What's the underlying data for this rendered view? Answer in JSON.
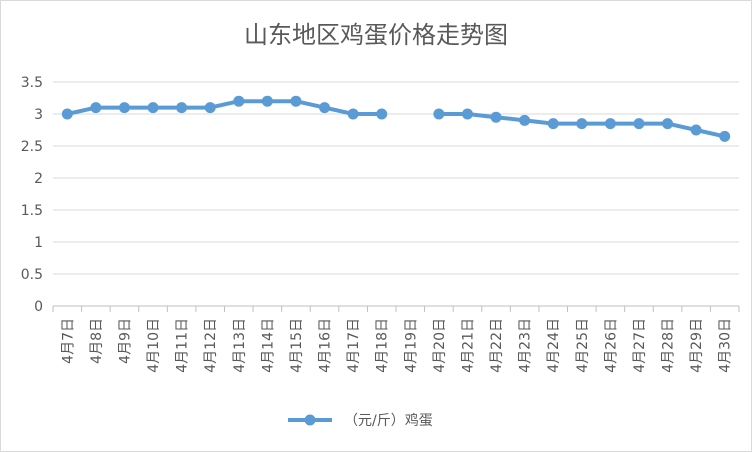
{
  "chart_data": {
    "type": "line",
    "title": "山东地区鸡蛋价格走势图",
    "xlabel": "",
    "ylabel": "",
    "ylim": [
      0,
      3.5
    ],
    "yticks": [
      "0",
      "0.5",
      "1",
      "1.5",
      "2",
      "2.5",
      "3",
      "3.5"
    ],
    "grid": true,
    "legend_position": "bottom",
    "categories": [
      "4月7日",
      "4月8日",
      "4月9日",
      "4月10日",
      "4月11日",
      "4月12日",
      "4月13日",
      "4月14日",
      "4月15日",
      "4月16日",
      "4月17日",
      "4月18日",
      "4月19日",
      "4月20日",
      "4月21日",
      "4月22日",
      "4月23日",
      "4月24日",
      "4月25日",
      "4月26日",
      "4月27日",
      "4月28日",
      "4月29日",
      "4月30日"
    ],
    "series": [
      {
        "name": "（元/斤）鸡蛋",
        "color": "#5b9bd5",
        "values": [
          3.0,
          3.1,
          3.1,
          3.1,
          3.1,
          3.1,
          3.2,
          3.2,
          3.2,
          3.1,
          3.0,
          3.0,
          null,
          3.0,
          3.0,
          2.95,
          2.9,
          2.85,
          2.85,
          2.85,
          2.85,
          2.85,
          2.75,
          2.65
        ]
      }
    ]
  }
}
